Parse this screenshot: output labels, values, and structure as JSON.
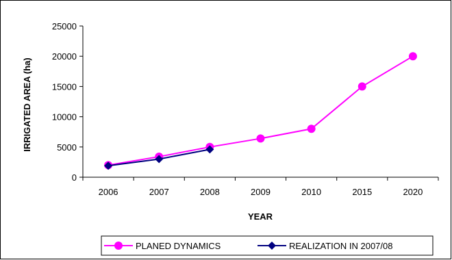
{
  "chart_data": {
    "type": "line",
    "title": "",
    "xlabel": "YEAR",
    "ylabel": "IRRIGATED AREA (ha)",
    "categories": [
      "2006",
      "2007",
      "2008",
      "2009",
      "2010",
      "2015",
      "2020"
    ],
    "ylim": [
      0,
      25000
    ],
    "yticks": [
      0,
      5000,
      10000,
      15000,
      20000,
      25000
    ],
    "grid": false,
    "legend_position": "bottom",
    "series": [
      {
        "name": "PLANED DYNAMICS",
        "color": "#ff00ff",
        "marker": "circle",
        "values": [
          2000,
          3400,
          5000,
          6400,
          8000,
          15000,
          20000
        ]
      },
      {
        "name": "REALIZATION IN 2007/08",
        "color": "#000080",
        "marker": "diamond",
        "values": [
          1900,
          3000,
          4600,
          null,
          null,
          null,
          null
        ]
      }
    ]
  }
}
